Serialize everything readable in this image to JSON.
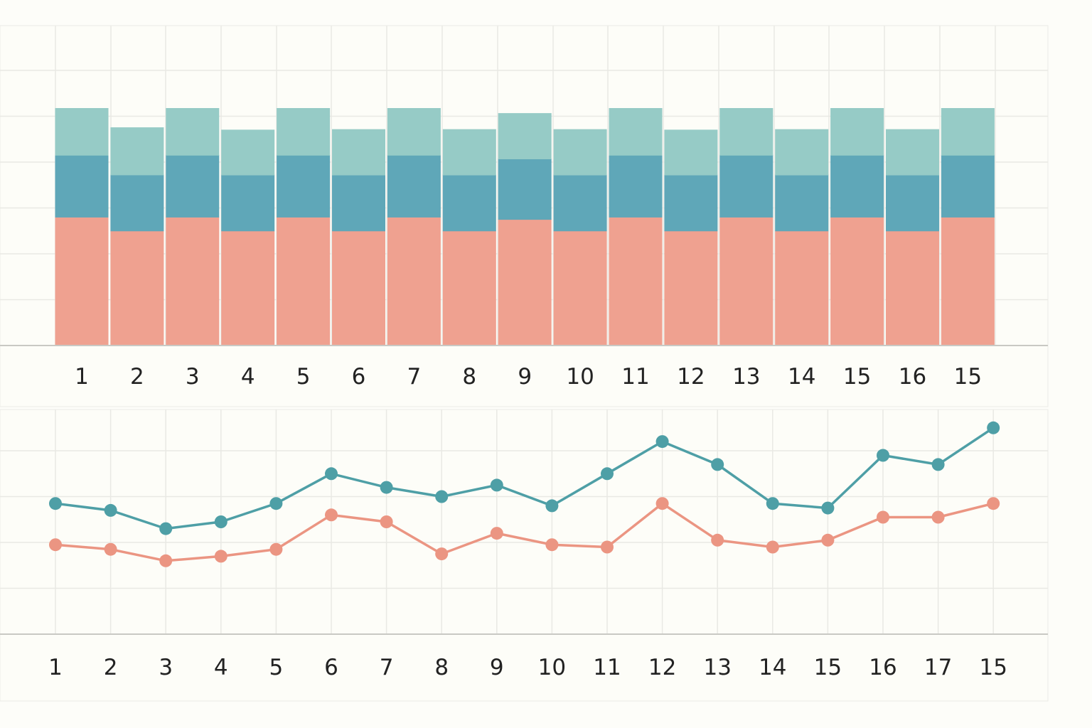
{
  "colors": {
    "background": "#fdfdf9",
    "panel": "#fdfdf8",
    "grid": "#e9e9e4",
    "axis": "#c9c9c4",
    "bar_bottom": "#efa190",
    "bar_middle": "#5fa7b8",
    "bar_top": "#96cbc6",
    "line_teal": "#4e9fa6",
    "line_salmon": "#eb9582",
    "tick_text": "#222222"
  },
  "chart_data": [
    {
      "type": "bar",
      "stacked": true,
      "title": "",
      "xlabel": "",
      "ylabel": "",
      "categories": [
        "1",
        "2",
        "3",
        "4",
        "5",
        "6",
        "7",
        "8",
        "9",
        "10",
        "11",
        "12",
        "13",
        "14",
        "15",
        "16",
        "15"
      ],
      "series": [
        {
          "color": "#efa190",
          "values": [
            2.8,
            2.5,
            2.8,
            2.5,
            2.8,
            2.5,
            2.8,
            2.5,
            2.75,
            2.5,
            2.8,
            2.5,
            2.8,
            2.5,
            2.8,
            2.5,
            2.8
          ]
        },
        {
          "color": "#5fa7b8",
          "values": [
            1.35,
            1.22,
            1.35,
            1.22,
            1.35,
            1.22,
            1.35,
            1.22,
            1.32,
            1.22,
            1.35,
            1.22,
            1.35,
            1.22,
            1.35,
            1.22,
            1.35
          ]
        },
        {
          "color": "#96cbc6",
          "values": [
            1.02,
            1.03,
            1.02,
            0.98,
            1.02,
            0.99,
            1.02,
            0.99,
            0.99,
            0.99,
            1.02,
            0.98,
            1.02,
            0.99,
            1.02,
            0.99,
            1.02
          ]
        }
      ],
      "ylim": [
        0,
        7
      ],
      "grid": true,
      "legend": "none"
    },
    {
      "type": "line",
      "title": "",
      "xlabel": "",
      "ylabel": "",
      "categories": [
        "1",
        "2",
        "3",
        "4",
        "5",
        "6",
        "7",
        "8",
        "9",
        "10",
        "11",
        "12",
        "13",
        "14",
        "15",
        "16",
        "17",
        "15"
      ],
      "series": [
        {
          "color": "#4e9fa6",
          "values": [
            3.85,
            3.7,
            3.3,
            3.45,
            3.85,
            4.5,
            4.2,
            4.0,
            4.25,
            3.8,
            4.5,
            5.2,
            4.7,
            3.85,
            3.75,
            4.9,
            4.7,
            5.5
          ]
        },
        {
          "color": "#eb9582",
          "values": [
            2.95,
            2.85,
            2.6,
            2.7,
            2.85,
            3.6,
            3.45,
            2.75,
            3.2,
            2.95,
            2.9,
            3.85,
            3.05,
            2.9,
            3.05,
            3.55,
            3.55,
            3.85
          ]
        }
      ],
      "ylim": [
        0,
        7
      ],
      "grid": true,
      "legend": "none"
    }
  ]
}
